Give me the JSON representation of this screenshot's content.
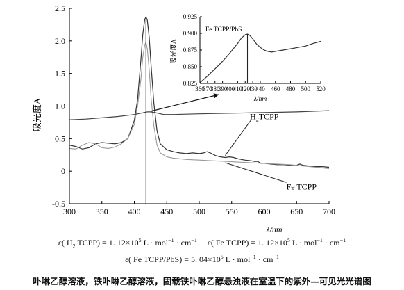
{
  "chart_data": [
    {
      "type": "line",
      "xlabel": "λ/nm",
      "ylabel": "吸光度A",
      "xlim": [
        300,
        700
      ],
      "ylim": [
        -0.5,
        2.5
      ],
      "xticks": [
        300,
        350,
        400,
        450,
        500,
        550,
        600,
        650,
        700
      ],
      "yticks": [
        -0.5,
        0,
        0.5,
        1.0,
        1.5,
        2.0,
        2.5
      ],
      "ytick_labels": [
        "-0.5",
        "0",
        "0.5",
        "1.0",
        "1.5",
        "2.0",
        "2.5"
      ],
      "grid": false,
      "vertical_marker_x": 418,
      "series": [
        {
          "name": "H2TCPP",
          "color": "#333333",
          "points": [
            [
              300,
              0.4
            ],
            [
              310,
              0.38
            ],
            [
              320,
              0.34
            ],
            [
              330,
              0.36
            ],
            [
              340,
              0.42
            ],
            [
              350,
              0.44
            ],
            [
              360,
              0.43
            ],
            [
              370,
              0.42
            ],
            [
              380,
              0.44
            ],
            [
              390,
              0.5
            ],
            [
              400,
              0.78
            ],
            [
              405,
              1.1
            ],
            [
              410,
              1.7
            ],
            [
              413,
              2.1
            ],
            [
              416,
              2.33
            ],
            [
              418,
              2.37
            ],
            [
              420,
              2.32
            ],
            [
              423,
              2.05
            ],
            [
              426,
              1.6
            ],
            [
              430,
              1.05
            ],
            [
              435,
              0.62
            ],
            [
              440,
              0.42
            ],
            [
              450,
              0.33
            ],
            [
              460,
              0.3
            ],
            [
              470,
              0.28
            ],
            [
              480,
              0.27
            ],
            [
              490,
              0.28
            ],
            [
              500,
              0.27
            ],
            [
              507,
              0.28
            ],
            [
              512,
              0.3
            ],
            [
              517,
              0.28
            ],
            [
              525,
              0.24
            ],
            [
              533,
              0.22
            ],
            [
              540,
              0.21
            ],
            [
              547,
              0.22
            ],
            [
              553,
              0.21
            ],
            [
              560,
              0.19
            ],
            [
              570,
              0.17
            ],
            [
              580,
              0.16
            ],
            [
              585,
              0.15
            ],
            [
              590,
              0.15
            ],
            [
              595,
              0.12
            ],
            [
              600,
              0.12
            ],
            [
              610,
              0.11
            ],
            [
              620,
              0.1
            ],
            [
              630,
              0.1
            ],
            [
              640,
              0.09
            ],
            [
              650,
              0.09
            ],
            [
              655,
              0.11
            ],
            [
              660,
              0.09
            ],
            [
              670,
              0.08
            ],
            [
              680,
              0.07
            ],
            [
              690,
              0.07
            ],
            [
              700,
              0.06
            ]
          ]
        },
        {
          "name": "Fe TCPP",
          "color": "#999999",
          "points": [
            [
              300,
              0.35
            ],
            [
              310,
              0.34
            ],
            [
              320,
              0.4
            ],
            [
              330,
              0.44
            ],
            [
              340,
              0.42
            ],
            [
              350,
              0.36
            ],
            [
              360,
              0.35
            ],
            [
              370,
              0.37
            ],
            [
              380,
              0.42
            ],
            [
              390,
              0.5
            ],
            [
              400,
              0.72
            ],
            [
              405,
              1.0
            ],
            [
              410,
              1.4
            ],
            [
              413,
              1.75
            ],
            [
              416,
              1.94
            ],
            [
              418,
              1.98
            ],
            [
              420,
              1.88
            ],
            [
              423,
              1.55
            ],
            [
              426,
              1.1
            ],
            [
              430,
              0.7
            ],
            [
              435,
              0.4
            ],
            [
              440,
              0.28
            ],
            [
              450,
              0.22
            ],
            [
              460,
              0.2
            ],
            [
              480,
              0.18
            ],
            [
              500,
              0.17
            ],
            [
              520,
              0.16
            ],
            [
              540,
              0.15
            ],
            [
              560,
              0.14
            ],
            [
              580,
              0.13
            ],
            [
              600,
              0.12
            ],
            [
              620,
              0.11
            ],
            [
              640,
              0.1
            ],
            [
              660,
              0.08
            ],
            [
              680,
              0.06
            ],
            [
              700,
              0.04
            ]
          ]
        },
        {
          "name": "Fe TCPP/PbS",
          "color": "#444444",
          "points": [
            [
              300,
              0.79
            ],
            [
              325,
              0.8
            ],
            [
              350,
              0.82
            ],
            [
              375,
              0.84
            ],
            [
              400,
              0.87
            ],
            [
              410,
              0.89
            ],
            [
              420,
              0.91
            ],
            [
              425,
              0.91
            ],
            [
              432,
              0.9
            ],
            [
              445,
              0.87
            ],
            [
              460,
              0.87
            ],
            [
              500,
              0.88
            ],
            [
              550,
              0.89
            ],
            [
              600,
              0.9
            ],
            [
              650,
              0.91
            ],
            [
              700,
              0.93
            ]
          ]
        }
      ],
      "annotations": [
        {
          "text": "H",
          "subscript": "2",
          "text_after": "TCPP",
          "data_x": 560,
          "data_y": 0.5
        },
        {
          "text": "Fe TCPP",
          "data_x": 645,
          "data_y": -0.3
        }
      ]
    },
    {
      "type": "line",
      "title": "Fe TCPP/PbS",
      "xlabel": "λ/nm",
      "ylabel": "吸光度A",
      "xlim": [
        360,
        520
      ],
      "ylim": [
        0.825,
        0.925
      ],
      "xticks": [
        360,
        370,
        380,
        390,
        400,
        410,
        420,
        430,
        440,
        460,
        480,
        500,
        520
      ],
      "yticks": [
        0.825,
        0.85,
        0.875,
        0.9,
        0.925
      ],
      "ytick_labels": [
        "0.825",
        "0.850",
        "0.875",
        "0.900",
        "0.925"
      ],
      "grid": false,
      "vertical_marker_x": 423,
      "series": [
        {
          "name": "Fe TCPP/PbS",
          "color": "#333333",
          "points": [
            [
              360,
              0.826
            ],
            [
              370,
              0.836
            ],
            [
              380,
              0.847
            ],
            [
              390,
              0.858
            ],
            [
              400,
              0.871
            ],
            [
              410,
              0.885
            ],
            [
              415,
              0.893
            ],
            [
              420,
              0.898
            ],
            [
              423,
              0.899
            ],
            [
              426,
              0.897
            ],
            [
              430,
              0.892
            ],
            [
              435,
              0.884
            ],
            [
              440,
              0.879
            ],
            [
              445,
              0.875
            ],
            [
              450,
              0.873
            ],
            [
              455,
              0.872
            ],
            [
              460,
              0.873
            ],
            [
              470,
              0.875
            ],
            [
              480,
              0.877
            ],
            [
              490,
              0.879
            ],
            [
              500,
              0.881
            ],
            [
              510,
              0.885
            ],
            [
              520,
              0.888
            ]
          ]
        }
      ]
    }
  ],
  "equations": {
    "eq1a_pre": "ε( H",
    "eq1a_sub": "2",
    "eq1a_post": " TCPP) = 1. 12×10",
    "eq1a_sup": "5",
    "eq1a_unit": " L · mol",
    "eq1a_unit_sup1": "−1",
    "eq1a_unit_mid": " · cm",
    "eq1a_unit_sup2": "−1",
    "eq1b_pre": "ε( Fe TCPP) = 1. 12×10",
    "eq1b_sup": "5",
    "eq1b_unit": " L · mol",
    "eq1b_unit_sup1": "−1",
    "eq1b_unit_mid": " · cm",
    "eq1b_unit_sup2": "−1",
    "eq2_pre": "ε( Fe TCPP/PbS) = 5. 04×10",
    "eq2_sup": "5",
    "eq2_unit": " L · mol",
    "eq2_unit_sup1": "−1",
    "eq2_unit_mid": " · cm",
    "eq2_unit_sup2": "−1"
  },
  "caption": "卟啉乙醇溶液，铁卟啉乙醇溶液，固载铁卟啉乙醇悬浊液在室温下的紫外—可见光光谱图"
}
